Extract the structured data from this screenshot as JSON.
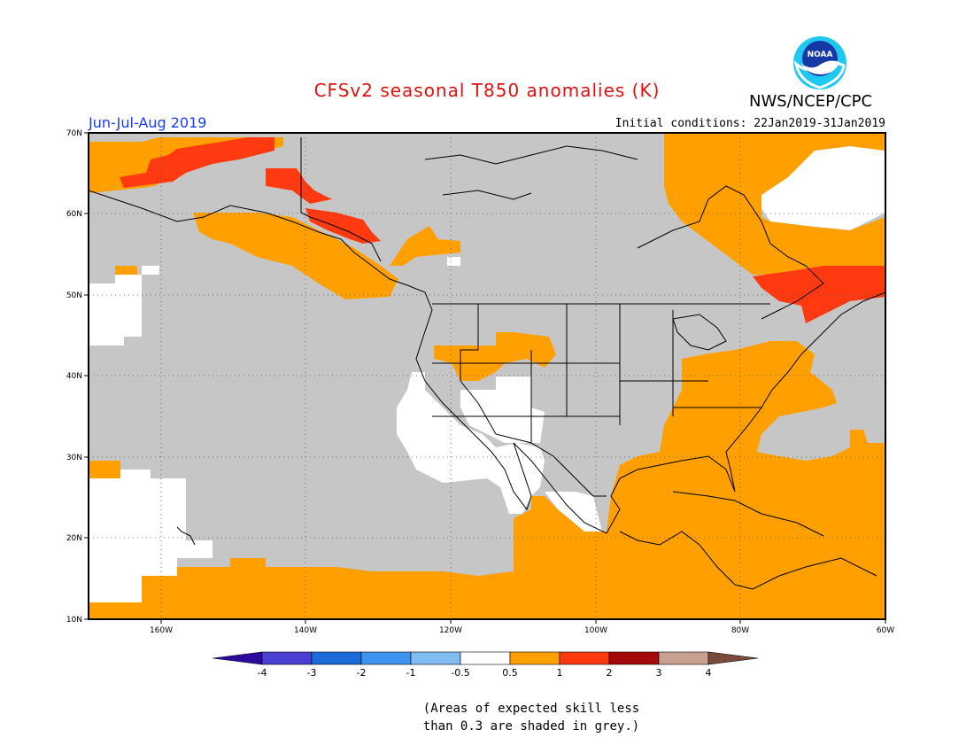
{
  "title": "CFSv2 seasonal T850 anomalies (K)",
  "agency": "NWS/NCEP/CPC",
  "logo_text": "NOAA",
  "period": "Jun-Jul-Aug 2019",
  "initial_conditions": "Initial conditions: 22Jan2019-31Jan2019",
  "lat_labels": [
    "70N",
    "60N",
    "50N",
    "40N",
    "30N",
    "20N",
    "10N"
  ],
  "lon_labels": [
    "160W",
    "140W",
    "120W",
    "100W",
    "80W",
    "60W"
  ],
  "colorbar": {
    "labels": [
      "-4",
      "-3",
      "-2",
      "-1",
      "-0.5",
      "0.5",
      "1",
      "2",
      "3",
      "4"
    ],
    "colors": [
      "#2d0a9e",
      "#4a3fd3",
      "#1b6ad8",
      "#3d94ee",
      "#82bdf2",
      "#ffffff",
      "#ff9f00",
      "#ff3a10",
      "#a50a0a",
      "#c8a090",
      "#7a4a3a"
    ]
  },
  "note_line1": "(Areas of expected skill less",
  "note_line2": "than 0.3 are shaded in grey.)",
  "colors": {
    "skill_grey": "#c6c6c6",
    "anomaly_05_1": "#ff9f00",
    "anomaly_1_2": "#ff3a10",
    "title": "#e01010",
    "period": "#1a3cff"
  }
}
